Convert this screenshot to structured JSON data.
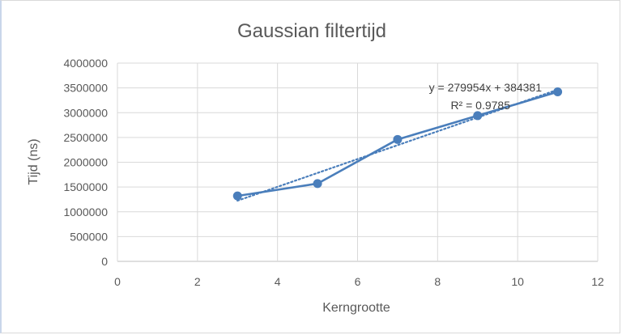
{
  "chart_data": {
    "type": "scatter",
    "title": "Gaussian filtertijd",
    "xlabel": "Kerngrootte",
    "ylabel": "Tijd (ns)",
    "xlim": [
      0,
      12
    ],
    "ylim": [
      0,
      4000000
    ],
    "x_ticks": [
      0,
      2,
      4,
      6,
      8,
      10,
      12
    ],
    "y_ticks": [
      0,
      500000,
      1000000,
      1500000,
      2000000,
      2500000,
      3000000,
      3500000,
      4000000
    ],
    "grid": true,
    "legend": "none",
    "series": [
      {
        "x": [
          3,
          5,
          7,
          9,
          11
        ],
        "y": [
          1320000,
          1570000,
          2460000,
          2940000,
          3420000
        ],
        "color": "#4a7ebb",
        "style": "line-with-markers"
      }
    ],
    "trendline": {
      "type": "linear",
      "slope": 279954,
      "intercept": 384381,
      "color": "#4a7ebb",
      "style": "dotted",
      "equation": "y = 279954x + 384381",
      "r_squared": "R² = 0.9785"
    }
  }
}
